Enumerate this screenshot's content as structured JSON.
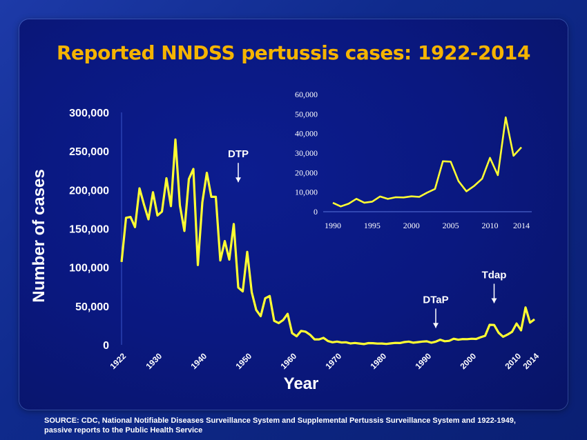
{
  "title": "Reported  NNDSS pertussis cases: 1922-2014",
  "source": "SOURCE: CDC, National Notifiable Diseases Surveillance System and Supplemental Pertussis Surveillance System and 1922-1949, passive reports to the Public Health Service",
  "colors": {
    "line": "#ffff33",
    "title": "#f5b400",
    "text": "#ffffff"
  },
  "chart_data": [
    {
      "type": "line",
      "ylabel": "Number of cases",
      "xlabel": "Year",
      "xlim": [
        1922,
        2014
      ],
      "ylim": [
        0,
        300000
      ],
      "yticks": [
        "0",
        "50,000",
        "100,000",
        "150,000",
        "200,000",
        "250,000",
        "300,000"
      ],
      "xticks": [
        "1922",
        "1930",
        "1940",
        "1950",
        "1960",
        "1970",
        "1980",
        "1990",
        "2000",
        "2010",
        "2014"
      ],
      "annotations": [
        {
          "text": "DTP",
          "x": 1948,
          "y": 201000
        },
        {
          "text": "DTaP",
          "x": 1992,
          "y": 13000
        },
        {
          "text": "Tdap",
          "x": 2005,
          "y": 45000
        }
      ],
      "x": [
        1922,
        1923,
        1924,
        1925,
        1926,
        1927,
        1928,
        1929,
        1930,
        1931,
        1932,
        1933,
        1934,
        1935,
        1936,
        1937,
        1938,
        1939,
        1940,
        1941,
        1942,
        1943,
        1944,
        1945,
        1946,
        1947,
        1948,
        1949,
        1950,
        1951,
        1952,
        1953,
        1954,
        1955,
        1956,
        1957,
        1958,
        1959,
        1960,
        1961,
        1962,
        1963,
        1964,
        1965,
        1966,
        1967,
        1968,
        1969,
        1970,
        1971,
        1972,
        1973,
        1974,
        1975,
        1976,
        1977,
        1978,
        1979,
        1980,
        1981,
        1982,
        1983,
        1984,
        1985,
        1986,
        1987,
        1988,
        1989,
        1990,
        1991,
        1992,
        1993,
        1994,
        1995,
        1996,
        1997,
        1998,
        1999,
        2000,
        2001,
        2002,
        2003,
        2004,
        2005,
        2006,
        2007,
        2008,
        2009,
        2010,
        2011,
        2012,
        2013,
        2014
      ],
      "values": [
        107000,
        164000,
        165000,
        152000,
        202000,
        181000,
        162000,
        197000,
        167000,
        172000,
        215000,
        179000,
        265000,
        180000,
        147000,
        214000,
        227000,
        103000,
        184000,
        222000,
        191000,
        191000,
        109000,
        134000,
        110000,
        156000,
        74000,
        69000,
        120000,
        68000,
        45000,
        37000,
        60000,
        63000,
        31000,
        28000,
        32000,
        40000,
        15000,
        11000,
        18000,
        17000,
        13000,
        7000,
        7000,
        9000,
        4800,
        3300,
        4200,
        3000,
        3300,
        1800,
        2400,
        1700,
        1000,
        2200,
        2100,
        1600,
        1700,
        1200,
        1900,
        2500,
        2300,
        3600,
        4200,
        2800,
        3500,
        4200,
        4570,
        2720,
        4080,
        6590,
        4620,
        5140,
        7800,
        6560,
        7400,
        7300,
        7870,
        7580,
        9770,
        11650,
        25830,
        25620,
        15630,
        10450,
        13280,
        16860,
        27550,
        18720,
        48280,
        28640,
        32970
      ]
    },
    {
      "type": "line",
      "xlim": [
        1990,
        2014
      ],
      "ylim": [
        0,
        60000
      ],
      "yticks": [
        "0",
        "10,000",
        "20,000",
        "30,000",
        "40,000",
        "50,000",
        "60,000"
      ],
      "xticks": [
        "1990",
        "1995",
        "2000",
        "2005",
        "2010",
        "2014"
      ],
      "x": [
        1990,
        1991,
        1992,
        1993,
        1994,
        1995,
        1996,
        1997,
        1998,
        1999,
        2000,
        2001,
        2002,
        2003,
        2004,
        2005,
        2006,
        2007,
        2008,
        2009,
        2010,
        2011,
        2012,
        2013,
        2014
      ],
      "values": [
        4570,
        2720,
        4080,
        6590,
        4620,
        5140,
        7800,
        6560,
        7400,
        7300,
        7870,
        7580,
        9770,
        11650,
        25830,
        25620,
        15630,
        10450,
        13280,
        16860,
        27550,
        18720,
        48280,
        28640,
        32970
      ]
    }
  ]
}
